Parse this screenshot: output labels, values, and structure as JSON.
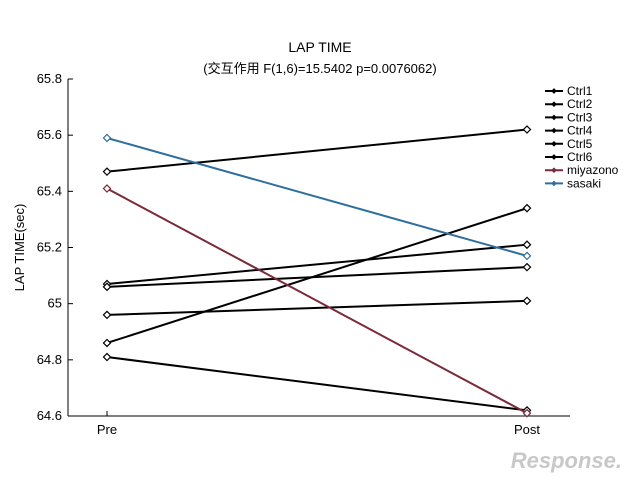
{
  "chart_data": {
    "type": "line",
    "title": "LAP TIME",
    "subtitle": "(交互作用 F(1,6)=15.5402 p=0.0076062)",
    "xlabel": "",
    "ylabel": "LAP TIME(sec)",
    "categories": [
      "Pre",
      "Post"
    ],
    "ylim": [
      64.6,
      65.8
    ],
    "yticks": [
      64.6,
      64.8,
      65,
      65.2,
      65.4,
      65.6,
      65.8
    ],
    "ytick_labels": [
      "64.6",
      "64.8",
      "65",
      "65.2",
      "65.4",
      "65.6",
      "65.8"
    ],
    "grid": false,
    "legend_position": "top-right",
    "series": [
      {
        "name": "Ctrl1",
        "color": "#000000",
        "values": [
          65.47,
          65.62
        ]
      },
      {
        "name": "Ctrl2",
        "color": "#000000",
        "values": [
          64.86,
          65.34
        ]
      },
      {
        "name": "Ctrl3",
        "color": "#000000",
        "values": [
          65.07,
          65.21
        ]
      },
      {
        "name": "Ctrl4",
        "color": "#000000",
        "values": [
          65.06,
          65.13
        ]
      },
      {
        "name": "Ctrl5",
        "color": "#000000",
        "values": [
          64.96,
          65.01
        ]
      },
      {
        "name": "Ctrl6",
        "color": "#000000",
        "values": [
          64.81,
          64.62
        ]
      },
      {
        "name": "miyazono",
        "color": "#7a2a3a",
        "values": [
          65.41,
          64.61
        ]
      },
      {
        "name": "sasaki",
        "color": "#2e6f9e",
        "values": [
          65.59,
          65.17
        ]
      }
    ]
  },
  "watermark": {
    "text": "Response.",
    "color": "#c8c8c8"
  }
}
